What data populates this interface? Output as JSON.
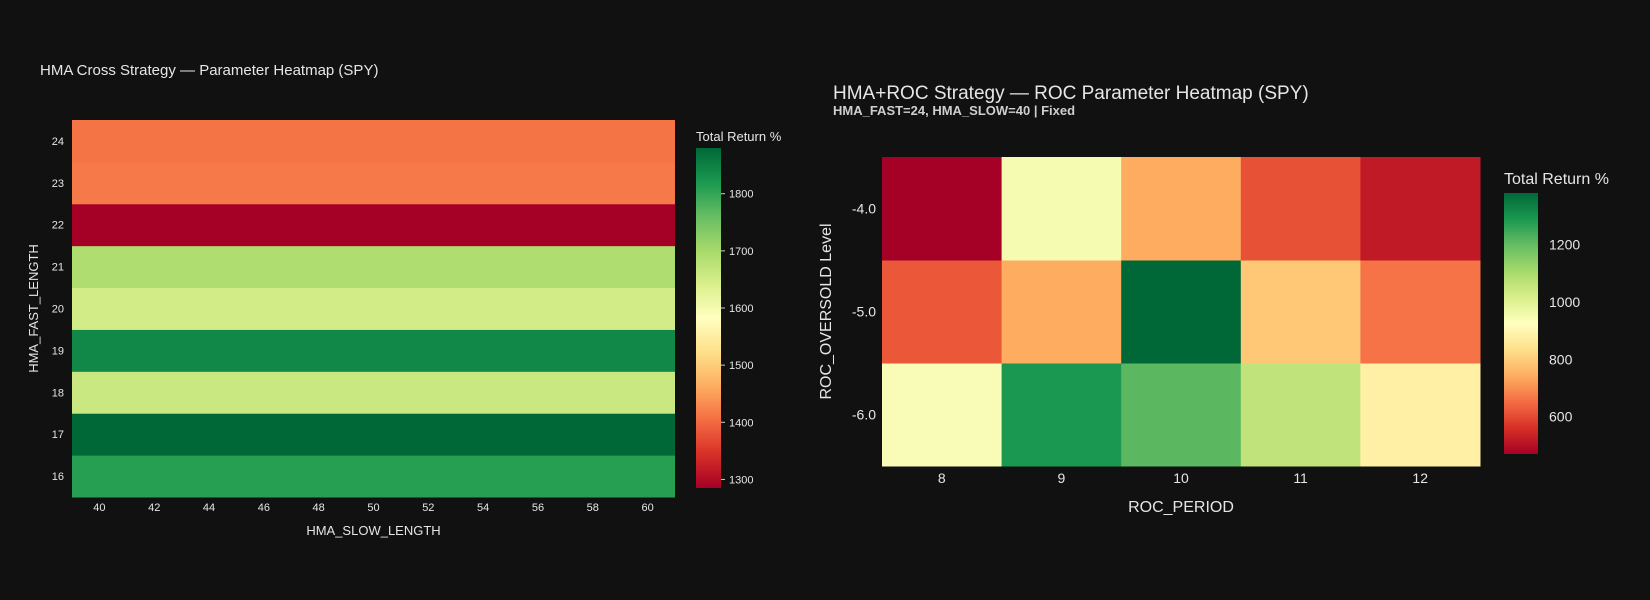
{
  "colors": {
    "background": "#111111",
    "scale": [
      "#a50026",
      "#d73027",
      "#f46d43",
      "#fdae61",
      "#fee08b",
      "#ffffbf",
      "#d9ef8b",
      "#a6d96a",
      "#66bd63",
      "#1a9850",
      "#006837"
    ]
  },
  "chart_data": [
    {
      "type": "heatmap",
      "title": "HMA Cross Strategy — Parameter Heatmap (SPY)",
      "xlabel": "HMA_SLOW_LENGTH",
      "ylabel": "HMA_FAST_LENGTH",
      "x": [
        40,
        42,
        44,
        46,
        48,
        50,
        52,
        54,
        56,
        58,
        60
      ],
      "y": [
        16,
        17,
        18,
        19,
        20,
        21,
        22,
        23,
        24
      ],
      "row_values": [
        1810,
        1880,
        1660,
        1840,
        1650,
        1690,
        1285,
        1415,
        1410
      ],
      "colorbar": {
        "title": "Total Return %",
        "min": 1285,
        "max": 1880,
        "ticks": [
          1300,
          1400,
          1500,
          1600,
          1700,
          1800
        ]
      }
    },
    {
      "type": "heatmap",
      "title": "HMA+ROC Strategy — ROC Parameter Heatmap (SPY)",
      "subtitle": "HMA_FAST=24, HMA_SLOW=40 | Fixed",
      "xlabel": "ROC_PERIOD",
      "ylabel": "ROC_OVERSOLD Level",
      "x": [
        "8",
        "9",
        "10",
        "11",
        "12"
      ],
      "y": [
        "-6.0",
        "-5.0",
        "-4.0"
      ],
      "z": [
        [
          940,
          1290,
          1210,
          1060,
          880
        ],
        [
          620,
          740,
          1380,
          790,
          660
        ],
        [
          470,
          950,
          740,
          610,
          520
        ]
      ],
      "colorbar": {
        "title": "Total Return %",
        "min": 470,
        "max": 1380,
        "ticks": [
          600,
          800,
          1000,
          1200
        ]
      }
    }
  ]
}
